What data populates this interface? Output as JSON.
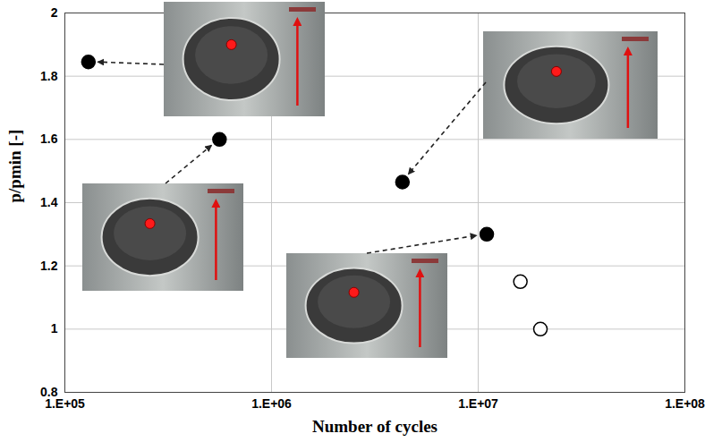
{
  "chart_data": {
    "type": "scatter",
    "x_label": "Number of cycles",
    "y_label": "p/pmin [-]",
    "log": "x",
    "grid": true,
    "xlim": [
      100000,
      100000000
    ],
    "xticks": [
      {
        "value": 100000,
        "label": "1.E+05"
      },
      {
        "value": 1000000,
        "label": "1.E+06"
      },
      {
        "value": 10000000,
        "label": "1.E+07"
      },
      {
        "value": 100000000,
        "label": "1.E+08"
      }
    ],
    "ylim": [
      0.8,
      2
    ],
    "yticks": [
      0.8,
      1,
      1.2,
      1.4,
      1.6,
      1.8,
      2
    ],
    "series": [
      {
        "color": "#000000",
        "marker": "filled",
        "x": [
          130000,
          560000,
          4300000,
          11000000
        ],
        "values": [
          1.845,
          1.6,
          1.465,
          1.3
        ]
      },
      {
        "color": "#000000",
        "marker": "open",
        "x": [
          16000000,
          20000000
        ],
        "values": [
          1.15,
          1.0
        ]
      }
    ]
  }
}
